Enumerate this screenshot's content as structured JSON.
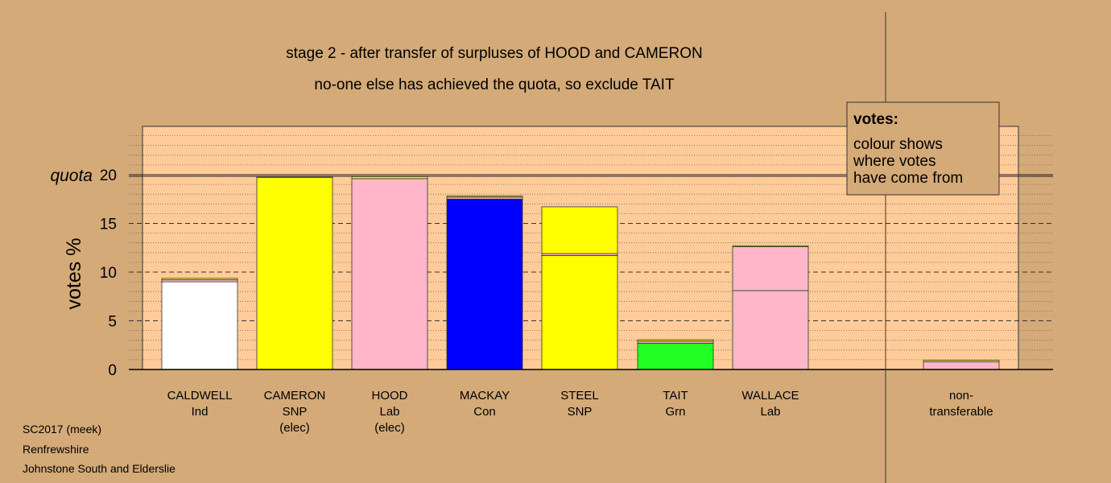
{
  "chart_data": {
    "type": "bar",
    "stacked": true,
    "title": "stage 2 - after transfer of surpluses of HOOD and CAMERON",
    "subtitle": "no-one else has achieved the quota, so exclude TAIT",
    "ylabel": "votes %",
    "ylim": [
      0,
      24
    ],
    "yticks": [
      0,
      5,
      10,
      15,
      20
    ],
    "quota": 20,
    "quota_label": "quota",
    "grid": "horizontal dashed",
    "categories": [
      {
        "name": "CALDWELL",
        "party": "Ind",
        "status": ""
      },
      {
        "name": "CAMERON",
        "party": "SNP",
        "status": "(elec)"
      },
      {
        "name": "HOOD",
        "party": "Lab",
        "status": "(elec)"
      },
      {
        "name": "MACKAY",
        "party": "Con",
        "status": ""
      },
      {
        "name": "STEEL",
        "party": "SNP",
        "status": ""
      },
      {
        "name": "TAIT",
        "party": "Grn",
        "status": ""
      },
      {
        "name": "WALLACE",
        "party": "Lab",
        "status": ""
      },
      {
        "name": "non-",
        "party": "transferable",
        "status": ""
      }
    ],
    "segments": [
      [
        {
          "value": 9.0,
          "color": "#FFFFFF"
        },
        {
          "value": 0.2,
          "color": "#FFB6C8"
        },
        {
          "value": 0.15,
          "color": "#FFFF00"
        }
      ],
      [
        {
          "value": 19.7,
          "color": "#FFFF00"
        },
        {
          "value": 0.1,
          "color": "#FFB6C8"
        }
      ],
      [
        {
          "value": 19.6,
          "color": "#FFB6C8"
        },
        {
          "value": 0.2,
          "color": "#FFFF00"
        }
      ],
      [
        {
          "value": 17.5,
          "color": "#0000FF"
        },
        {
          "value": 0.2,
          "color": "#FFB6C8"
        },
        {
          "value": 0.1,
          "color": "#FFFF00"
        }
      ],
      [
        {
          "value": 11.7,
          "color": "#FFFF00"
        },
        {
          "value": 0.2,
          "color": "#FFB6C8"
        },
        {
          "value": 4.8,
          "color": "#FFFF00"
        }
      ],
      [
        {
          "value": 2.7,
          "color": "#22FF22"
        },
        {
          "value": 0.2,
          "color": "#FFB6C8"
        },
        {
          "value": 0.15,
          "color": "#FFFF00"
        }
      ],
      [
        {
          "value": 8.1,
          "color": "#FFB6C8"
        },
        {
          "value": 4.5,
          "color": "#FFB6C8"
        },
        {
          "value": 0.1,
          "color": "#FFFF00"
        }
      ],
      [
        {
          "value": 0.8,
          "color": "#FFB6C8"
        },
        {
          "value": 0.15,
          "color": "#FFFF00"
        }
      ]
    ],
    "legend": {
      "title": "votes:",
      "lines": [
        "colour shows",
        "where votes",
        "have come from"
      ],
      "position": "top-right"
    }
  },
  "footer": {
    "lines": [
      "SC2017 (meek)",
      "Renfrewshire",
      "Johnstone South and Elderslie"
    ]
  },
  "colors": {
    "background": "#D4AA78",
    "plot_area": "#FFCC99"
  }
}
